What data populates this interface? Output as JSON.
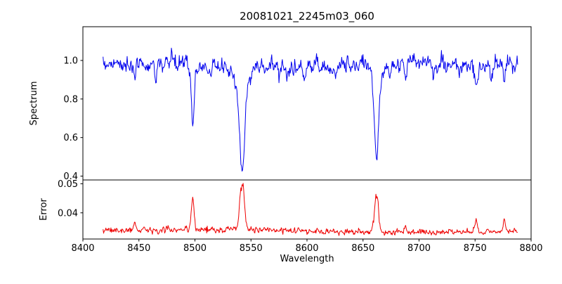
{
  "chart_data": {
    "type": "line",
    "title": "20081021_2245m03_060",
    "xlabel": "Wavelength",
    "grid": false,
    "legend": "none",
    "xlim": [
      8400,
      8800
    ],
    "x_range": [
      8418,
      8788
    ],
    "n_points": 741,
    "x_ticks": [
      {
        "v": 8400,
        "label": "8400"
      },
      {
        "v": 8450,
        "label": "8450"
      },
      {
        "v": 8500,
        "label": "8500"
      },
      {
        "v": 8550,
        "label": "8550"
      },
      {
        "v": 8600,
        "label": "8600"
      },
      {
        "v": 8650,
        "label": "8650"
      },
      {
        "v": 8700,
        "label": "8700"
      },
      {
        "v": 8750,
        "label": "8750"
      },
      {
        "v": 8800,
        "label": "8800"
      }
    ],
    "subplots": [
      {
        "name": "spectrum",
        "ylabel": "Spectrum",
        "color": "#0000ee",
        "ylim": [
          0.38,
          1.175
        ],
        "y_ticks": [
          {
            "v": 1.0,
            "label": "1.0"
          },
          {
            "v": 0.8,
            "label": "0.8"
          },
          {
            "v": 0.6,
            "label": "0.6"
          },
          {
            "v": 0.4,
            "label": "0.4"
          }
        ],
        "continuum": 0.975,
        "noise": 0.02,
        "absorption_lines": [
          {
            "center": 8446.0,
            "depth": 0.1,
            "width": 1.0
          },
          {
            "center": 8465.0,
            "depth": 0.07,
            "width": 0.9
          },
          {
            "center": 8498.0,
            "depth": 0.28,
            "width": 1.2,
            "wing_depth": 0.05,
            "wing_width": 3.0
          },
          {
            "center": 8514.0,
            "depth": 0.06,
            "width": 0.9
          },
          {
            "center": 8542.1,
            "depth": 0.44,
            "width": 2.2,
            "wing_depth": 0.12,
            "wing_width": 5.5
          },
          {
            "center": 8582.0,
            "depth": 0.05,
            "width": 0.9
          },
          {
            "center": 8598.0,
            "depth": 0.07,
            "width": 1.0
          },
          {
            "center": 8621.0,
            "depth": 0.06,
            "width": 0.9
          },
          {
            "center": 8662.1,
            "depth": 0.4,
            "width": 1.7,
            "wing_depth": 0.09,
            "wing_width": 4.5
          },
          {
            "center": 8674.0,
            "depth": 0.05,
            "width": 0.9
          },
          {
            "center": 8688.0,
            "depth": 0.08,
            "width": 1.1
          },
          {
            "center": 8713.0,
            "depth": 0.06,
            "width": 0.9
          },
          {
            "center": 8736.0,
            "depth": 0.05,
            "width": 0.9
          },
          {
            "center": 8751.0,
            "depth": 0.12,
            "width": 1.3
          },
          {
            "center": 8764.0,
            "depth": 0.08,
            "width": 1.0
          },
          {
            "center": 8776.0,
            "depth": 0.09,
            "width": 1.0
          }
        ]
      },
      {
        "name": "error",
        "ylabel": "Error",
        "color": "#ee0000",
        "ylim": [
          0.031,
          0.0513
        ],
        "y_ticks": [
          {
            "v": 0.05,
            "label": "0.05"
          },
          {
            "v": 0.04,
            "label": "0.04"
          }
        ],
        "baseline": 0.0338,
        "noise": 0.0005,
        "peaks": [
          {
            "center": 8446.0,
            "height": 0.0025,
            "width": 1.0
          },
          {
            "center": 8498.0,
            "height": 0.01,
            "width": 1.2
          },
          {
            "center": 8542.1,
            "height": 0.0163,
            "width": 2.0
          },
          {
            "center": 8662.1,
            "height": 0.014,
            "width": 1.7
          },
          {
            "center": 8688.0,
            "height": 0.002,
            "width": 1.0
          },
          {
            "center": 8751.0,
            "height": 0.0045,
            "width": 1.2
          },
          {
            "center": 8776.0,
            "height": 0.003,
            "width": 1.0
          }
        ]
      }
    ]
  }
}
